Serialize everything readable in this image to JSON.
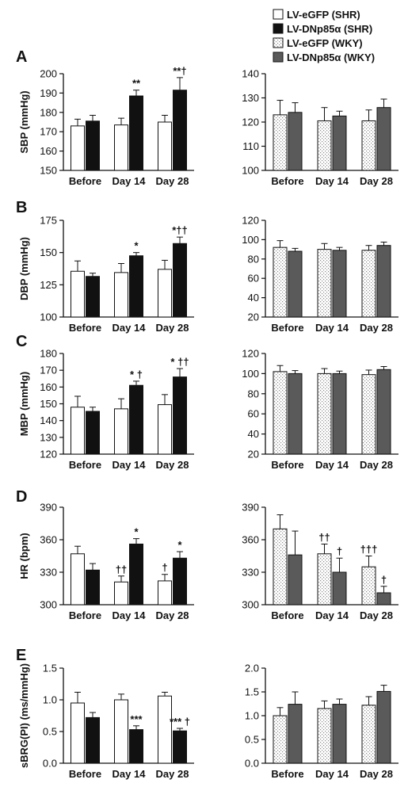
{
  "styles": {
    "lv_egfp_shr": "#ffffff",
    "lv_dnp85a_shr": "#111111",
    "lv_egfp_wky": "stipple",
    "lv_dnp85a_wky": "#5a5a5a"
  },
  "legend": [
    {
      "label": "LV-eGFP (SHR)",
      "style": "lv_egfp_shr"
    },
    {
      "label": "LV-DNp85α (SHR)",
      "style": "lv_dnp85a_shr"
    },
    {
      "label": "LV-eGFP (WKY)",
      "style": "lv_egfp_wky"
    },
    {
      "label": "LV-DNp85α (WKY)",
      "style": "lv_dnp85a_wky"
    }
  ],
  "chart_data": [
    {
      "type": "bar",
      "panel": "A",
      "side": "left",
      "ylabel": "SBP (mmHg)",
      "categories": [
        "Before",
        "Day 14",
        "Day 28"
      ],
      "ylim": [
        150,
        200
      ],
      "yticks": [
        "150",
        "160",
        "170",
        "180",
        "190",
        "200"
      ],
      "series": [
        {
          "style": "lv_egfp_shr",
          "values": [
            173,
            173.5,
            175
          ],
          "errors": [
            3.5,
            3.5,
            3.5
          ],
          "labels": [
            "",
            "",
            ""
          ]
        },
        {
          "style": "lv_dnp85a_shr",
          "values": [
            175.5,
            188.5,
            191.5
          ],
          "errors": [
            3,
            3,
            6.5
          ],
          "labels": [
            "",
            "**",
            "**†"
          ]
        }
      ]
    },
    {
      "type": "bar",
      "panel": "A",
      "side": "right",
      "ylabel": "",
      "categories": [
        "Before",
        "Day 14",
        "Day 28"
      ],
      "ylim": [
        100,
        140
      ],
      "yticks": [
        "100",
        "110",
        "120",
        "130",
        "140"
      ],
      "series": [
        {
          "style": "lv_egfp_wky",
          "values": [
            123,
            120.5,
            120.5
          ],
          "errors": [
            6,
            5.5,
            4.5
          ],
          "labels": [
            "",
            "",
            ""
          ]
        },
        {
          "style": "lv_dnp85a_wky",
          "values": [
            124,
            122.5,
            126
          ],
          "errors": [
            4,
            2,
            3.5
          ],
          "labels": [
            "",
            "",
            ""
          ]
        }
      ]
    },
    {
      "type": "bar",
      "panel": "B",
      "side": "left",
      "ylabel": "DBP (mmHg)",
      "categories": [
        "Before",
        "Day 14",
        "Day 28"
      ],
      "ylim": [
        100,
        175
      ],
      "yticks": [
        "100",
        "125",
        "150",
        "175"
      ],
      "series": [
        {
          "style": "lv_egfp_shr",
          "values": [
            135.5,
            134.5,
            137
          ],
          "errors": [
            8,
            7,
            7
          ],
          "labels": [
            "",
            "",
            ""
          ]
        },
        {
          "style": "lv_dnp85a_shr",
          "values": [
            131.5,
            147.5,
            157
          ],
          "errors": [
            2.5,
            2.5,
            5
          ],
          "labels": [
            "",
            "*",
            "*††"
          ]
        }
      ]
    },
    {
      "type": "bar",
      "panel": "B",
      "side": "right",
      "ylabel": "",
      "categories": [
        "Before",
        "Day 14",
        "Day 28"
      ],
      "ylim": [
        20,
        120
      ],
      "yticks": [
        "20",
        "40",
        "60",
        "80",
        "100",
        "120"
      ],
      "series": [
        {
          "style": "lv_egfp_wky",
          "values": [
            92,
            90,
            89
          ],
          "errors": [
            7,
            6,
            5
          ],
          "labels": [
            "",
            "",
            ""
          ]
        },
        {
          "style": "lv_dnp85a_wky",
          "values": [
            88,
            89,
            94
          ],
          "errors": [
            3,
            3,
            3.5
          ],
          "labels": [
            "",
            "",
            ""
          ]
        }
      ]
    },
    {
      "type": "bar",
      "panel": "C",
      "side": "left",
      "ylabel": "MBP (mmHg)",
      "categories": [
        "Before",
        "Day 14",
        "Day 28"
      ],
      "ylim": [
        120,
        180
      ],
      "yticks": [
        "120",
        "130",
        "140",
        "150",
        "160",
        "170",
        "180"
      ],
      "series": [
        {
          "style": "lv_egfp_shr",
          "values": [
            148,
            147,
            149.5
          ],
          "errors": [
            6.5,
            6,
            6
          ],
          "labels": [
            "",
            "",
            ""
          ]
        },
        {
          "style": "lv_dnp85a_shr",
          "values": [
            145.5,
            161,
            166
          ],
          "errors": [
            2.5,
            2.5,
            5
          ],
          "labels": [
            "",
            "* †",
            "* ††"
          ]
        }
      ]
    },
    {
      "type": "bar",
      "panel": "C",
      "side": "right",
      "ylabel": "",
      "categories": [
        "Before",
        "Day 14",
        "Day 28"
      ],
      "ylim": [
        20,
        120
      ],
      "yticks": [
        "20",
        "40",
        "60",
        "80",
        "100",
        "120"
      ],
      "series": [
        {
          "style": "lv_egfp_wky",
          "values": [
            102,
            100,
            99
          ],
          "errors": [
            6,
            5,
            4.5
          ],
          "labels": [
            "",
            "",
            ""
          ]
        },
        {
          "style": "lv_dnp85a_wky",
          "values": [
            100,
            100,
            104
          ],
          "errors": [
            3,
            2.5,
            3
          ],
          "labels": [
            "",
            "",
            ""
          ]
        }
      ]
    },
    {
      "type": "bar",
      "panel": "D",
      "side": "left",
      "ylabel": "HR (bpm)",
      "categories": [
        "Before",
        "Day 14",
        "Day 28"
      ],
      "ylim": [
        300,
        390
      ],
      "yticks": [
        "300",
        "330",
        "360",
        "390"
      ],
      "series": [
        {
          "style": "lv_egfp_shr",
          "values": [
            347,
            321,
            322
          ],
          "errors": [
            7,
            5.5,
            6
          ],
          "labels": [
            "",
            "††",
            "†"
          ]
        },
        {
          "style": "lv_dnp85a_shr",
          "values": [
            332,
            356,
            343
          ],
          "errors": [
            6,
            5,
            6
          ],
          "labels": [
            "",
            "*",
            "*"
          ]
        }
      ]
    },
    {
      "type": "bar",
      "panel": "D",
      "side": "right",
      "ylabel": "",
      "categories": [
        "Before",
        "Day 14",
        "Day 28"
      ],
      "ylim": [
        300,
        390
      ],
      "yticks": [
        "300",
        "330",
        "360",
        "390"
      ],
      "series": [
        {
          "style": "lv_egfp_wky",
          "values": [
            370,
            347,
            335
          ],
          "errors": [
            13,
            9,
            10
          ],
          "labels": [
            "",
            "††",
            "†††"
          ]
        },
        {
          "style": "lv_dnp85a_wky",
          "values": [
            346,
            330,
            311
          ],
          "errors": [
            22,
            13,
            6
          ],
          "labels": [
            "",
            "†",
            "†"
          ]
        }
      ]
    },
    {
      "type": "bar",
      "panel": "E",
      "side": "left",
      "ylabel": "sBRG(PI) (ms/mmHg)",
      "categories": [
        "Before",
        "Day 14",
        "Day 28"
      ],
      "ylim": [
        0,
        1.5
      ],
      "yticks": [
        "0.0",
        "0.5",
        "1.0",
        "1.5"
      ],
      "series": [
        {
          "style": "lv_egfp_shr",
          "values": [
            0.95,
            1.0,
            1.06
          ],
          "errors": [
            0.17,
            0.09,
            0.06
          ],
          "labels": [
            "",
            "",
            ""
          ]
        },
        {
          "style": "lv_dnp85a_shr",
          "values": [
            0.72,
            0.53,
            0.51
          ],
          "errors": [
            0.08,
            0.06,
            0.04
          ],
          "labels": [
            "",
            "***",
            "*** †"
          ]
        }
      ]
    },
    {
      "type": "bar",
      "panel": "E",
      "side": "right",
      "ylabel": "",
      "categories": [
        "Before",
        "Day 14",
        "Day 28"
      ],
      "ylim": [
        0,
        2.0
      ],
      "yticks": [
        "0.0",
        "0.5",
        "1.0",
        "1.5",
        "2.0"
      ],
      "series": [
        {
          "style": "lv_egfp_wky",
          "values": [
            1.0,
            1.15,
            1.22
          ],
          "errors": [
            0.17,
            0.16,
            0.18
          ],
          "labels": [
            "",
            "",
            ""
          ]
        },
        {
          "style": "lv_dnp85a_wky",
          "values": [
            1.24,
            1.24,
            1.51
          ],
          "errors": [
            0.26,
            0.11,
            0.13
          ],
          "labels": [
            "",
            "",
            ""
          ]
        }
      ]
    }
  ]
}
